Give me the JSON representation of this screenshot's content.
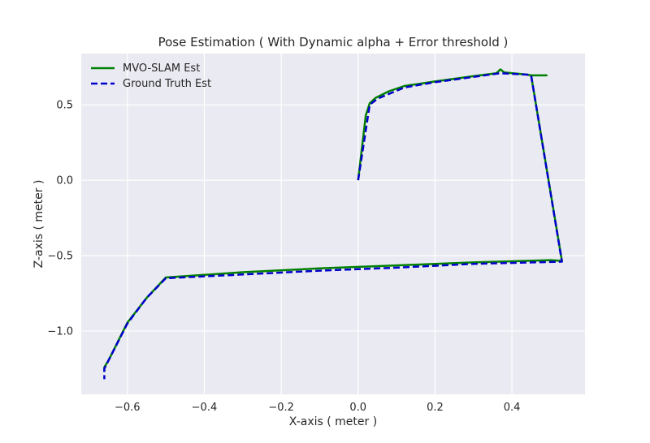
{
  "chart_data": {
    "type": "line",
    "title": "Pose Estimation ( With Dynamic alpha + Error threshold )",
    "xlabel": "X-axis ( meter )",
    "ylabel": "Z-axis ( meter )",
    "xlim": [
      -0.72,
      0.59
    ],
    "ylim": [
      -1.42,
      0.84
    ],
    "xticks": [
      -0.6,
      -0.4,
      -0.2,
      0.0,
      0.2,
      0.4
    ],
    "xtick_labels": [
      "−0.6",
      "−0.4",
      "−0.2",
      "0.0",
      "0.2",
      "0.4"
    ],
    "yticks": [
      0.5,
      0.0,
      -0.5,
      -1.0
    ],
    "ytick_labels": [
      "0.5",
      "0.0",
      "−0.5",
      "−1.0"
    ],
    "grid": true,
    "legend_position": "top-left",
    "series": [
      {
        "name": "MVO-SLAM Est",
        "color": "#008000",
        "dash": "solid",
        "points": [
          [
            0.0,
            0.0
          ],
          [
            0.02,
            0.43
          ],
          [
            0.03,
            0.51
          ],
          [
            0.045,
            0.545
          ],
          [
            0.08,
            0.59
          ],
          [
            0.12,
            0.625
          ],
          [
            0.2,
            0.655
          ],
          [
            0.3,
            0.69
          ],
          [
            0.36,
            0.71
          ],
          [
            0.37,
            0.735
          ],
          [
            0.38,
            0.715
          ],
          [
            0.44,
            0.7
          ],
          [
            0.45,
            0.695
          ],
          [
            0.49,
            0.695
          ],
          [
            0.45,
            0.695
          ],
          [
            0.53,
            -0.535
          ],
          [
            0.5,
            -0.53
          ],
          [
            0.3,
            -0.545
          ],
          [
            0.1,
            -0.565
          ],
          [
            -0.1,
            -0.585
          ],
          [
            -0.3,
            -0.61
          ],
          [
            -0.5,
            -0.645
          ],
          [
            -0.55,
            -0.78
          ],
          [
            -0.6,
            -0.945
          ],
          [
            -0.65,
            -1.2
          ],
          [
            -0.66,
            -1.24
          ],
          [
            -0.66,
            -1.27
          ]
        ]
      },
      {
        "name": "Ground Truth Est",
        "color": "#0000cc",
        "dash": "dashed",
        "points": [
          [
            0.0,
            0.0
          ],
          [
            0.03,
            0.5
          ],
          [
            0.05,
            0.54
          ],
          [
            0.12,
            0.615
          ],
          [
            0.2,
            0.65
          ],
          [
            0.3,
            0.685
          ],
          [
            0.37,
            0.71
          ],
          [
            0.44,
            0.7
          ],
          [
            0.45,
            0.695
          ],
          [
            0.53,
            -0.54
          ],
          [
            0.3,
            -0.555
          ],
          [
            0.1,
            -0.58
          ],
          [
            -0.1,
            -0.6
          ],
          [
            -0.3,
            -0.625
          ],
          [
            -0.5,
            -0.65
          ],
          [
            -0.55,
            -0.78
          ],
          [
            -0.6,
            -0.95
          ],
          [
            -0.65,
            -1.2
          ],
          [
            -0.66,
            -1.25
          ],
          [
            -0.66,
            -1.32
          ]
        ]
      }
    ]
  }
}
